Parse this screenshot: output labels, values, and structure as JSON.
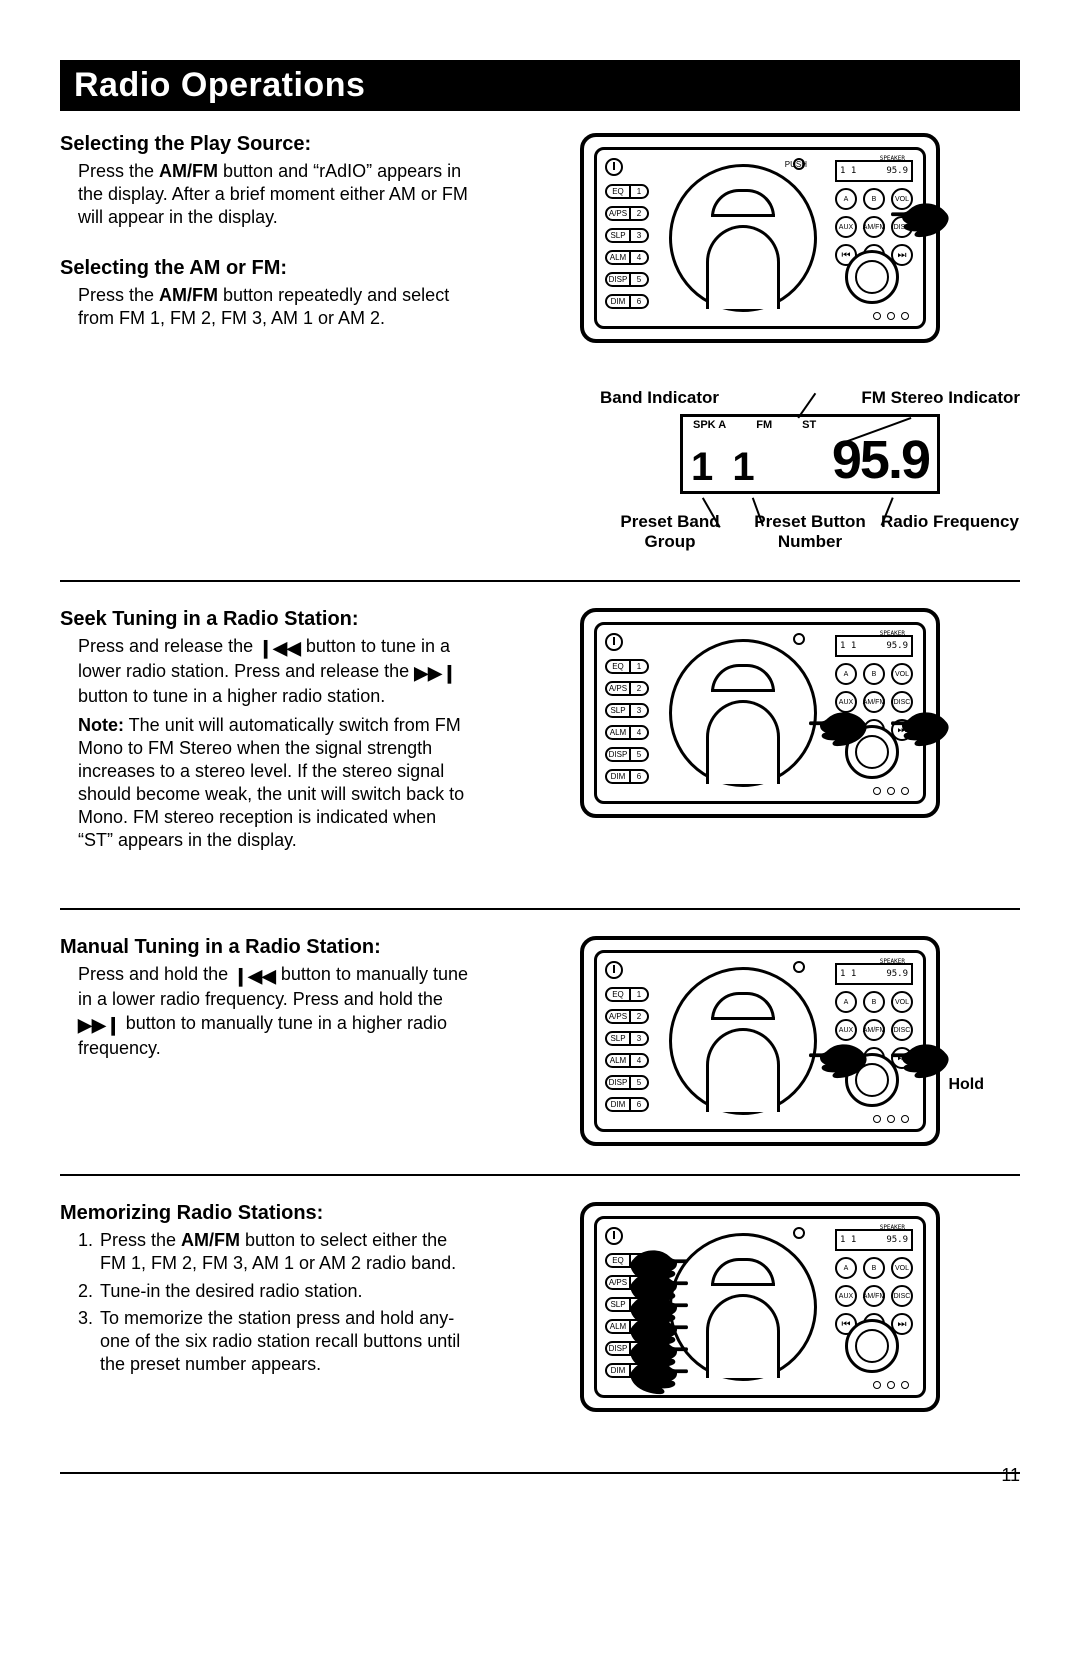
{
  "page": {
    "title": "Radio Operations",
    "number": "11"
  },
  "section1": {
    "heading": "Selecting the Play Source:",
    "body_pre": "Press the ",
    "body_bold": "AM/FM",
    "body_post": " button and “rAdIO” appears in the display. After a brief moment either AM or FM will appear in the display."
  },
  "section2": {
    "heading": "Selecting the AM or FM:",
    "body_pre": "Press the ",
    "body_bold": "AM/FM",
    "body_post": " button repeatedly and select from FM 1, FM 2, FM 3, AM 1 or AM 2."
  },
  "lcd": {
    "label_band_indicator": "Band Indicator",
    "label_fm_stereo": "FM Stereo Indicator",
    "label_preset_band_group": "Preset Band Group",
    "label_preset_button_number": "Preset Button Number",
    "label_radio_frequency": "Radio Frequency",
    "spk": "SPK A",
    "fm": "FM",
    "st": "ST",
    "preset_band": "1",
    "preset_num": "1",
    "frequency": "95.9"
  },
  "section3": {
    "heading": "Seek Tuning in a Radio Station:",
    "body1_pre": "Press and release the ",
    "body1_mid": " button to tune in a lower radio station. Press and release the ",
    "body1_post": " button to tune in a higher radio station.",
    "note_label": "Note:",
    "note_body": " The unit will automatically switch from FM Mono to FM Stereo when the signal strength increases to a stereo level. If the stereo signal should become weak, the unit will switch back to Mono. FM stereo reception is indicated when “ST” appears in the display."
  },
  "section4": {
    "heading": "Manual Tuning in a Radio Station:",
    "body_pre": "Press and hold the ",
    "body_mid": " button to manually tune in a lower radio frequency. Press and hold the ",
    "body_post": " button to manually tune in a  higher radio frequency.",
    "hold_label": "Hold"
  },
  "section5": {
    "heading": "Memorizing Radio Stations:",
    "step1_pre": "Press the ",
    "step1_bold": "AM/FM",
    "step1_post": " button to select either the FM 1, FM 2, FM 3, AM 1 or AM 2 radio band.",
    "step2": "Tune-in the desired radio station.",
    "step3": "To memorize the station press and hold any-one of the six radio station recall buttons until the preset number appears."
  },
  "device": {
    "display_left": "1 1",
    "display_right": "95.9",
    "speaker_label": "SPEAKER",
    "presets": [
      {
        "label": "EQ",
        "num": "1"
      },
      {
        "label": "A/PS",
        "num": "2"
      },
      {
        "label": "SLP",
        "num": "3"
      },
      {
        "label": "ALM",
        "num": "4"
      },
      {
        "label": "DISP",
        "num": "5"
      },
      {
        "label": "DIM",
        "num": "6"
      }
    ],
    "grid_btns": [
      "A",
      "B",
      "VOL",
      "AUX",
      "AM/FM",
      "DISC"
    ],
    "row2_btns": [
      "⏮",
      "⏯",
      "⏭"
    ],
    "push": "PUSH"
  },
  "icons": {
    "prev": "❙◀◀",
    "next": "▶▶❙"
  },
  "colors": {
    "fg": "#000000",
    "bg": "#ffffff"
  }
}
